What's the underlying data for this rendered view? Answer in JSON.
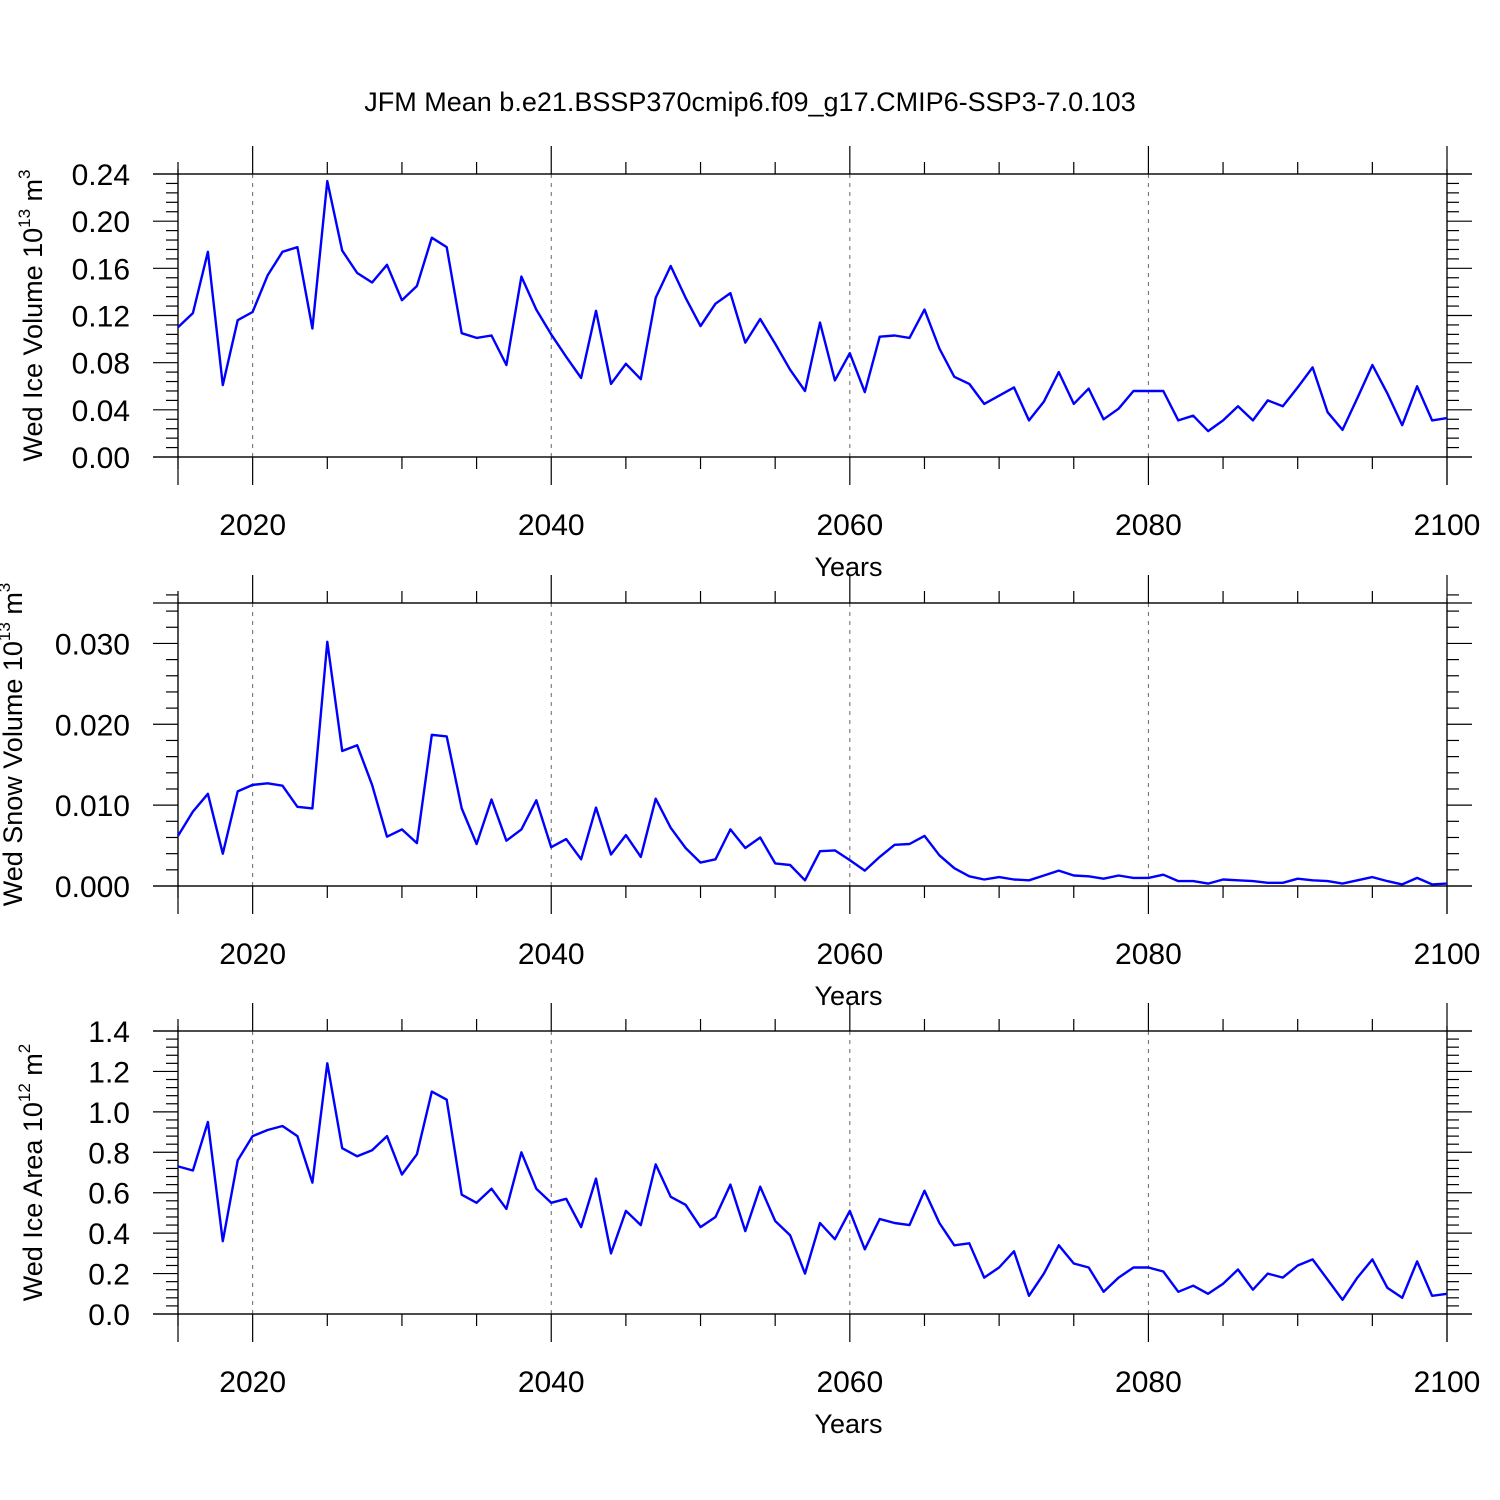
{
  "title": "JFM Mean b.e21.BSSP370cmip6.f09_g17.CMIP6-SSP3-7.0.103",
  "colors": {
    "series": "#0000ff",
    "axes": "#000000",
    "grid": "#666666"
  },
  "chart_data": [
    {
      "type": "line",
      "ylabel": {
        "main": "Wed Ice Volume 10",
        "exp": "13",
        "unit": " m",
        "unit_exp": "3"
      },
      "xlabel": "Years",
      "xlim": [
        2015,
        2100
      ],
      "ylim": [
        0,
        0.24
      ],
      "xticks": [
        2020,
        2040,
        2060,
        2080,
        2100
      ],
      "xtick_labels": [
        "2020",
        "2040",
        "2060",
        "2080",
        "2100"
      ],
      "yticks": [
        0,
        0.04,
        0.08,
        0.12,
        0.16,
        0.2,
        0.24
      ],
      "ytick_labels": [
        "0.00",
        "0.04",
        "0.08",
        "0.12",
        "0.16",
        "0.20",
        "0.24"
      ],
      "grid": "vertical dashed at major x ticks",
      "x_start": 2015,
      "values": [
        0.11,
        0.122,
        0.174,
        0.061,
        0.116,
        0.123,
        0.154,
        0.174,
        0.178,
        0.109,
        0.234,
        0.175,
        0.156,
        0.148,
        0.163,
        0.133,
        0.145,
        0.186,
        0.178,
        0.105,
        0.101,
        0.103,
        0.078,
        0.153,
        0.125,
        0.104,
        0.085,
        0.067,
        0.124,
        0.062,
        0.079,
        0.066,
        0.135,
        0.162,
        0.135,
        0.111,
        0.13,
        0.139,
        0.097,
        0.117,
        0.096,
        0.074,
        0.056,
        0.114,
        0.065,
        0.088,
        0.055,
        0.102,
        0.103,
        0.101,
        0.125,
        0.092,
        0.068,
        0.062,
        0.045,
        0.052,
        0.059,
        0.031,
        0.047,
        0.072,
        0.045,
        0.058,
        0.032,
        0.041,
        0.056,
        0.056,
        0.056,
        0.031,
        0.035,
        0.022,
        0.031,
        0.043,
        0.031,
        0.048,
        0.043,
        0.059,
        0.076,
        0.038,
        0.023,
        0.05,
        0.078,
        0.054,
        0.027,
        0.06,
        0.031,
        0.033
      ]
    },
    {
      "type": "line",
      "ylabel": {
        "main": "Wed Snow Volume 10",
        "exp": "13",
        "unit": " m",
        "unit_exp": "3"
      },
      "xlabel": "Years",
      "xlim": [
        2015,
        2100
      ],
      "ylim": [
        0,
        0.035
      ],
      "xticks": [
        2020,
        2040,
        2060,
        2080,
        2100
      ],
      "xtick_labels": [
        "2020",
        "2040",
        "2060",
        "2080",
        "2100"
      ],
      "yticks": [
        0,
        0.01,
        0.02,
        0.03
      ],
      "ytick_labels": [
        "0.000",
        "0.010",
        "0.020",
        "0.030"
      ],
      "grid": "vertical dashed at major x ticks",
      "x_start": 2015,
      "values": [
        0.0062,
        0.0092,
        0.0114,
        0.004,
        0.0117,
        0.0125,
        0.0127,
        0.0124,
        0.0098,
        0.0096,
        0.0302,
        0.0167,
        0.0174,
        0.0125,
        0.0061,
        0.007,
        0.0053,
        0.0187,
        0.0185,
        0.0096,
        0.0052,
        0.0107,
        0.0056,
        0.007,
        0.0106,
        0.0048,
        0.0058,
        0.0033,
        0.0097,
        0.0039,
        0.0063,
        0.0036,
        0.0108,
        0.0072,
        0.0047,
        0.0029,
        0.0033,
        0.007,
        0.0047,
        0.006,
        0.0028,
        0.0026,
        0.0007,
        0.0043,
        0.0044,
        0.0032,
        0.0019,
        0.0036,
        0.0051,
        0.0052,
        0.0062,
        0.0038,
        0.0022,
        0.0012,
        0.0008,
        0.0011,
        0.0008,
        0.0007,
        0.0013,
        0.0019,
        0.0013,
        0.0012,
        0.0009,
        0.0013,
        0.001,
        0.001,
        0.0014,
        0.0006,
        0.0006,
        0.0003,
        0.0008,
        0.0007,
        0.0006,
        0.0004,
        0.0004,
        0.0009,
        0.0007,
        0.0006,
        0.0003,
        0.0007,
        0.0011,
        0.0006,
        0.0002,
        0.001,
        0.0002,
        0.0003
      ]
    },
    {
      "type": "line",
      "ylabel": {
        "main": "Wed Ice Area 10",
        "exp": "12",
        "unit": " m",
        "unit_exp": "2"
      },
      "xlabel": "Years",
      "xlim": [
        2015,
        2100
      ],
      "ylim": [
        0,
        1.4
      ],
      "xticks": [
        2020,
        2040,
        2060,
        2080,
        2100
      ],
      "xtick_labels": [
        "2020",
        "2040",
        "2060",
        "2080",
        "2100"
      ],
      "yticks": [
        0,
        0.2,
        0.4,
        0.6,
        0.8,
        1.0,
        1.2,
        1.4
      ],
      "ytick_labels": [
        "0.0",
        "0.2",
        "0.4",
        "0.6",
        "0.8",
        "1.0",
        "1.2",
        "1.4"
      ],
      "grid": "vertical dashed at major x ticks",
      "x_start": 2015,
      "values": [
        0.73,
        0.71,
        0.95,
        0.36,
        0.76,
        0.88,
        0.91,
        0.93,
        0.88,
        0.65,
        1.24,
        0.82,
        0.78,
        0.81,
        0.88,
        0.69,
        0.79,
        1.1,
        1.06,
        0.59,
        0.55,
        0.62,
        0.52,
        0.8,
        0.62,
        0.55,
        0.57,
        0.43,
        0.67,
        0.3,
        0.51,
        0.44,
        0.74,
        0.58,
        0.54,
        0.43,
        0.48,
        0.64,
        0.41,
        0.63,
        0.46,
        0.39,
        0.2,
        0.45,
        0.37,
        0.51,
        0.32,
        0.47,
        0.45,
        0.44,
        0.61,
        0.45,
        0.34,
        0.35,
        0.18,
        0.23,
        0.31,
        0.09,
        0.2,
        0.34,
        0.25,
        0.23,
        0.11,
        0.18,
        0.23,
        0.23,
        0.21,
        0.11,
        0.14,
        0.1,
        0.15,
        0.22,
        0.12,
        0.2,
        0.18,
        0.24,
        0.27,
        0.17,
        0.07,
        0.18,
        0.27,
        0.13,
        0.08,
        0.26,
        0.09,
        0.1
      ]
    }
  ]
}
